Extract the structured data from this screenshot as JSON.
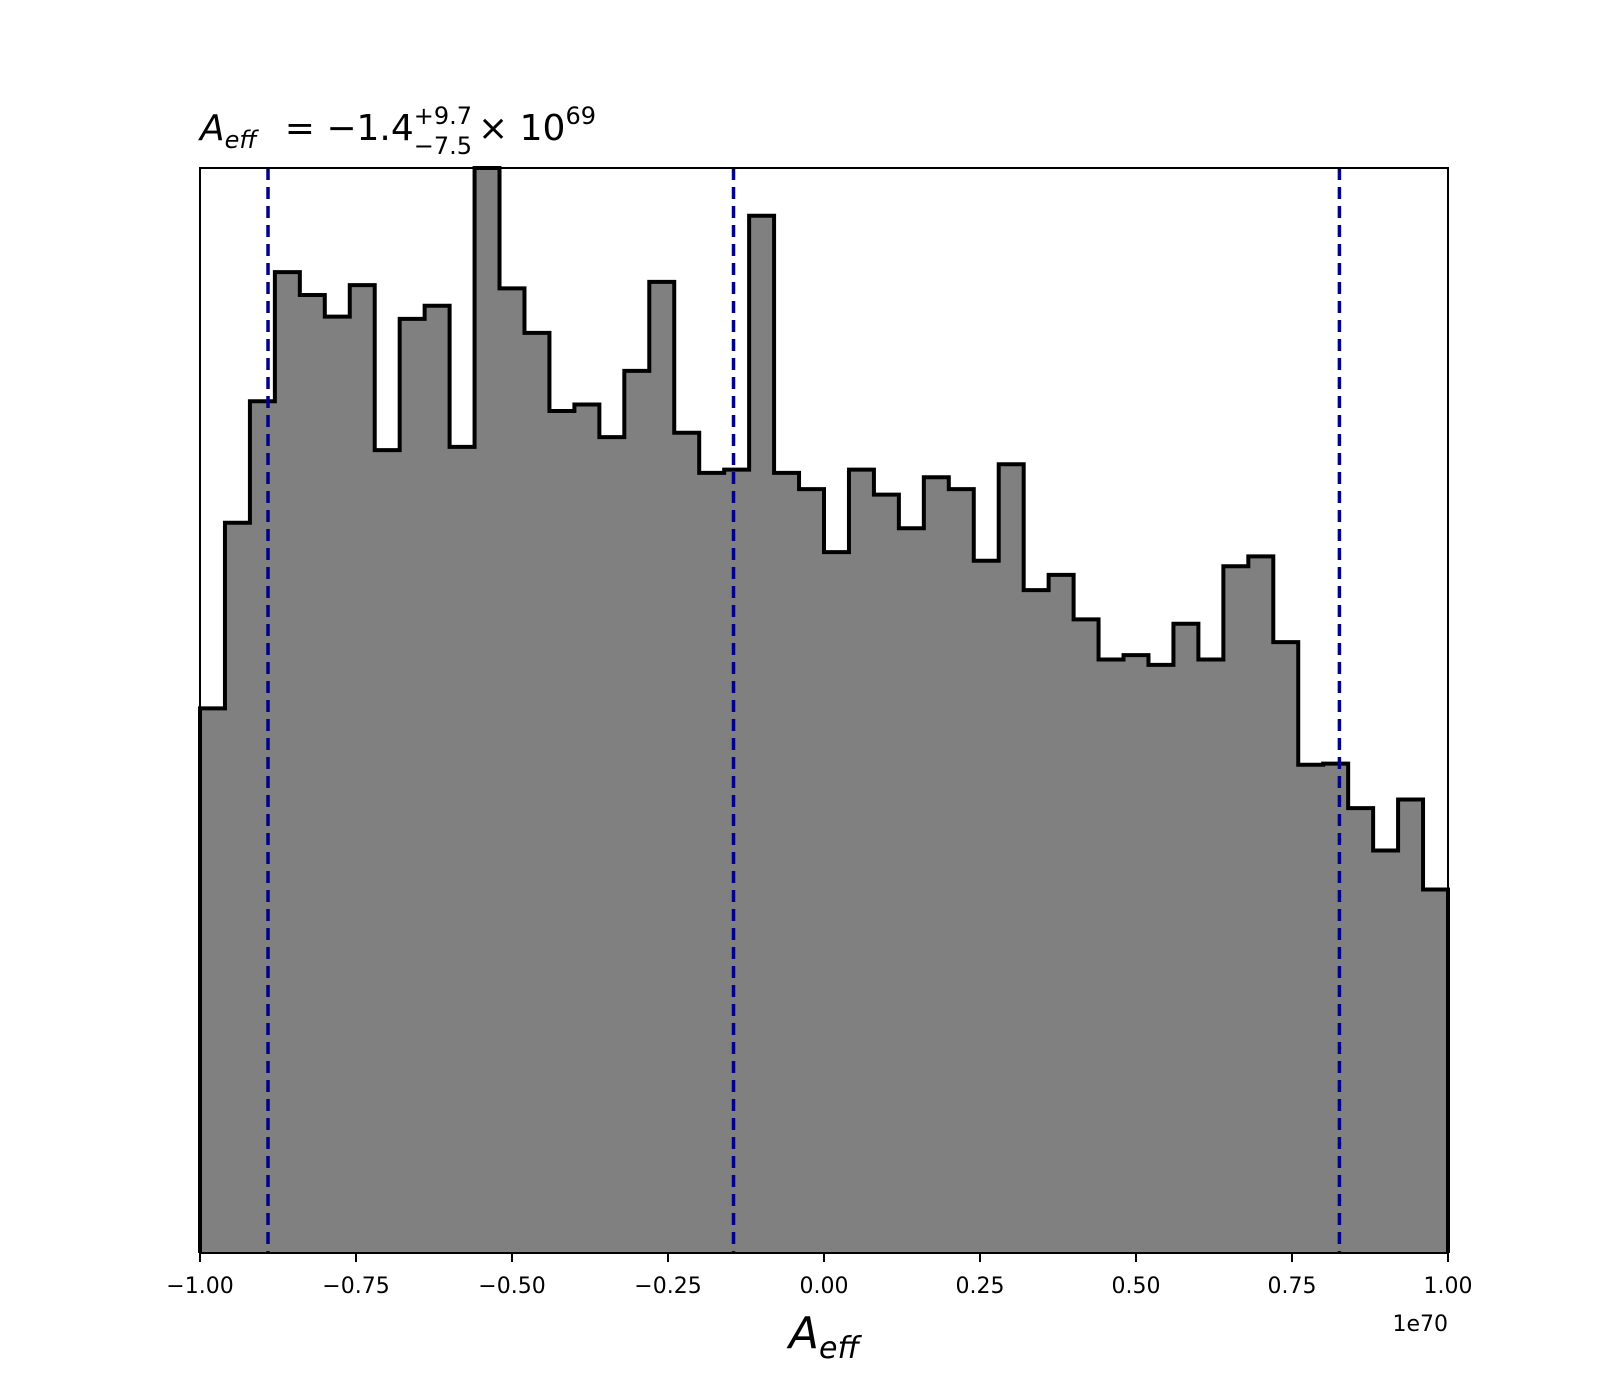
{
  "chart_data": {
    "type": "histogram",
    "title": {
      "symbol": "A",
      "symbol_sub": "eff",
      "value": "= −1.4",
      "upper": "+9.7",
      "lower": "−7.5",
      "times": "× 10",
      "exponent": "69"
    },
    "xlabel": {
      "symbol": "A",
      "sub": "eff"
    },
    "x_offset_label": "1e70",
    "xlim": [
      -1.0,
      1.0
    ],
    "ylim": [
      0,
      1.0
    ],
    "x_ticks": [
      -1.0,
      -0.75,
      -0.5,
      -0.25,
      0.0,
      0.25,
      0.5,
      0.75,
      1.0
    ],
    "x_tick_labels": [
      "−1.00",
      "−0.75",
      "−0.50",
      "−0.25",
      "0.00",
      "0.25",
      "0.50",
      "0.75",
      "1.00"
    ],
    "y_ticks_visible": false,
    "bin_edges_start": -1.0,
    "bin_width": 0.04,
    "counts": [
      0.502,
      0.673,
      0.785,
      0.904,
      0.883,
      0.863,
      0.892,
      0.74,
      0.861,
      0.873,
      0.743,
      1.0,
      0.889,
      0.848,
      0.776,
      0.782,
      0.752,
      0.813,
      0.895,
      0.756,
      0.719,
      0.722,
      0.956,
      0.719,
      0.704,
      0.646,
      0.722,
      0.699,
      0.668,
      0.715,
      0.704,
      0.638,
      0.727,
      0.611,
      0.625,
      0.584,
      0.547,
      0.551,
      0.542,
      0.58,
      0.547,
      0.633,
      0.642,
      0.563,
      0.45,
      0.451,
      0.41,
      0.371,
      0.418,
      0.335
    ],
    "fill_color": "#808080",
    "edge_color": "#000000",
    "quantile_lines": [
      -0.891,
      -0.145,
      0.826
    ],
    "quantile_line_color": "#00008b"
  }
}
